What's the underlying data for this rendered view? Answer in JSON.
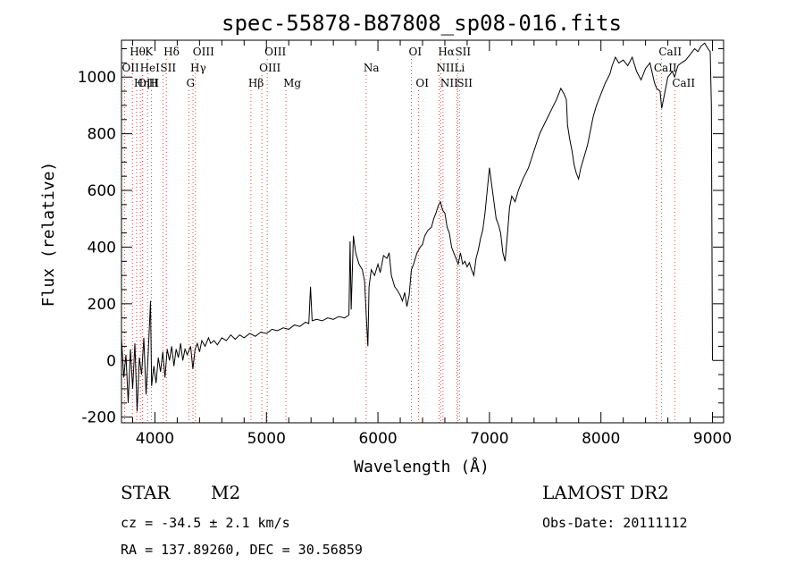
{
  "chart_data": {
    "type": "line",
    "title": "spec-55878-B87808_sp08-016.fits",
    "xlabel": "Wavelength (Å)",
    "ylabel": "Flux (relative)",
    "xlim": [
      3700,
      9100
    ],
    "ylim": [
      -220,
      1130
    ],
    "x_ticks": [
      4000,
      5000,
      6000,
      7000,
      8000,
      9000
    ],
    "y_ticks": [
      -200,
      0,
      200,
      400,
      600,
      800,
      1000
    ],
    "grid": false,
    "series": [
      {
        "points": [
          [
            3700,
            80
          ],
          [
            3720,
            -60
          ],
          [
            3740,
            20
          ],
          [
            3760,
            -150
          ],
          [
            3780,
            40
          ],
          [
            3800,
            -100
          ],
          [
            3820,
            60
          ],
          [
            3840,
            -180
          ],
          [
            3860,
            10
          ],
          [
            3880,
            -50
          ],
          [
            3900,
            80
          ],
          [
            3920,
            -120
          ],
          [
            3940,
            30
          ],
          [
            3960,
            210
          ],
          [
            3970,
            -90
          ],
          [
            3990,
            -20
          ],
          [
            4010,
            -80
          ],
          [
            4030,
            10
          ],
          [
            4050,
            -40
          ],
          [
            4070,
            30
          ],
          [
            4090,
            -60
          ],
          [
            4110,
            40
          ],
          [
            4130,
            0
          ],
          [
            4150,
            50
          ],
          [
            4170,
            -20
          ],
          [
            4190,
            40
          ],
          [
            4210,
            10
          ],
          [
            4230,
            60
          ],
          [
            4250,
            0
          ],
          [
            4270,
            40
          ],
          [
            4290,
            20
          ],
          [
            4320,
            50
          ],
          [
            4340,
            -30
          ],
          [
            4360,
            40
          ],
          [
            4380,
            60
          ],
          [
            4400,
            30
          ],
          [
            4420,
            70
          ],
          [
            4450,
            50
          ],
          [
            4480,
            80
          ],
          [
            4500,
            60
          ],
          [
            4530,
            70
          ],
          [
            4560,
            55
          ],
          [
            4600,
            80
          ],
          [
            4640,
            70
          ],
          [
            4680,
            90
          ],
          [
            4720,
            75
          ],
          [
            4760,
            90
          ],
          [
            4800,
            80
          ],
          [
            4850,
            95
          ],
          [
            4900,
            85
          ],
          [
            4950,
            100
          ],
          [
            5000,
            95
          ],
          [
            5050,
            110
          ],
          [
            5100,
            105
          ],
          [
            5150,
            115
          ],
          [
            5200,
            110
          ],
          [
            5250,
            125
          ],
          [
            5300,
            120
          ],
          [
            5350,
            135
          ],
          [
            5380,
            130
          ],
          [
            5395,
            260
          ],
          [
            5410,
            140
          ],
          [
            5450,
            145
          ],
          [
            5500,
            140
          ],
          [
            5550,
            150
          ],
          [
            5600,
            145
          ],
          [
            5650,
            155
          ],
          [
            5700,
            150
          ],
          [
            5740,
            160
          ],
          [
            5750,
            420
          ],
          [
            5760,
            180
          ],
          [
            5780,
            440
          ],
          [
            5800,
            380
          ],
          [
            5830,
            340
          ],
          [
            5860,
            320
          ],
          [
            5880,
            280
          ],
          [
            5900,
            120
          ],
          [
            5910,
            50
          ],
          [
            5920,
            260
          ],
          [
            5940,
            320
          ],
          [
            5970,
            300
          ],
          [
            6000,
            340
          ],
          [
            6020,
            310
          ],
          [
            6050,
            370
          ],
          [
            6080,
            360
          ],
          [
            6100,
            380
          ],
          [
            6120,
            300
          ],
          [
            6150,
            260
          ],
          [
            6170,
            250
          ],
          [
            6200,
            230
          ],
          [
            6220,
            210
          ],
          [
            6240,
            240
          ],
          [
            6260,
            190
          ],
          [
            6280,
            230
          ],
          [
            6300,
            320
          ],
          [
            6320,
            340
          ],
          [
            6350,
            380
          ],
          [
            6380,
            400
          ],
          [
            6400,
            410
          ],
          [
            6420,
            440
          ],
          [
            6450,
            460
          ],
          [
            6480,
            470
          ],
          [
            6500,
            500
          ],
          [
            6520,
            520
          ],
          [
            6540,
            545
          ],
          [
            6560,
            560
          ],
          [
            6580,
            530
          ],
          [
            6600,
            520
          ],
          [
            6620,
            470
          ],
          [
            6640,
            450
          ],
          [
            6660,
            400
          ],
          [
            6680,
            380
          ],
          [
            6700,
            360
          ],
          [
            6720,
            340
          ],
          [
            6740,
            380
          ],
          [
            6760,
            340
          ],
          [
            6780,
            350
          ],
          [
            6800,
            330
          ],
          [
            6820,
            345
          ],
          [
            6840,
            320
          ],
          [
            6860,
            300
          ],
          [
            6880,
            360
          ],
          [
            6900,
            390
          ],
          [
            6920,
            430
          ],
          [
            6940,
            460
          ],
          [
            6960,
            520
          ],
          [
            6980,
            600
          ],
          [
            7000,
            680
          ],
          [
            7020,
            620
          ],
          [
            7040,
            560
          ],
          [
            7060,
            500
          ],
          [
            7080,
            480
          ],
          [
            7100,
            450
          ],
          [
            7120,
            380
          ],
          [
            7140,
            350
          ],
          [
            7160,
            440
          ],
          [
            7180,
            540
          ],
          [
            7200,
            580
          ],
          [
            7230,
            560
          ],
          [
            7260,
            600
          ],
          [
            7300,
            640
          ],
          [
            7350,
            680
          ],
          [
            7400,
            740
          ],
          [
            7450,
            800
          ],
          [
            7500,
            840
          ],
          [
            7550,
            880
          ],
          [
            7600,
            920
          ],
          [
            7640,
            960
          ],
          [
            7670,
            940
          ],
          [
            7690,
            920
          ],
          [
            7700,
            830
          ],
          [
            7720,
            780
          ],
          [
            7740,
            740
          ],
          [
            7760,
            690
          ],
          [
            7780,
            660
          ],
          [
            7800,
            640
          ],
          [
            7820,
            680
          ],
          [
            7850,
            720
          ],
          [
            7880,
            760
          ],
          [
            7900,
            800
          ],
          [
            7930,
            860
          ],
          [
            7960,
            900
          ],
          [
            8000,
            940
          ],
          [
            8040,
            980
          ],
          [
            8080,
            1010
          ],
          [
            8100,
            1040
          ],
          [
            8130,
            1070
          ],
          [
            8160,
            1050
          ],
          [
            8200,
            1060
          ],
          [
            8240,
            1040
          ],
          [
            8280,
            1070
          ],
          [
            8320,
            1020
          ],
          [
            8360,
            990
          ],
          [
            8400,
            1030
          ],
          [
            8440,
            1050
          ],
          [
            8480,
            980
          ],
          [
            8500,
            960
          ],
          [
            8530,
            950
          ],
          [
            8545,
            890
          ],
          [
            8560,
            920
          ],
          [
            8580,
            960
          ],
          [
            8600,
            1000
          ],
          [
            8640,
            1020
          ],
          [
            8660,
            1000
          ],
          [
            8690,
            1040
          ],
          [
            8720,
            1050
          ],
          [
            8760,
            1060
          ],
          [
            8800,
            1080
          ],
          [
            8840,
            1100
          ],
          [
            8870,
            1090
          ],
          [
            8900,
            1110
          ],
          [
            8930,
            1120
          ],
          [
            8960,
            1100
          ],
          [
            8980,
            1090
          ],
          [
            8990,
            900
          ],
          [
            9000,
            0
          ]
        ]
      }
    ],
    "line_markers": [
      {
        "label": "Hθ",
        "x": 3798,
        "row": 0
      },
      {
        "label": "OII",
        "x": 3727,
        "row": 1
      },
      {
        "label": "OIII",
        "x": 3869,
        "row": 2
      },
      {
        "label": "K",
        "x": 3934,
        "row": 0
      },
      {
        "label": "HeI",
        "x": 3889,
        "row": 1
      },
      {
        "label": "Hη",
        "x": 3835,
        "row": 2
      },
      {
        "label": "SII",
        "x": 4072,
        "row": 1
      },
      {
        "label": "H",
        "x": 3969,
        "row": 2
      },
      {
        "label": "Hδ",
        "x": 4102,
        "row": 0
      },
      {
        "label": "OIII",
        "x": 4363,
        "row": 0
      },
      {
        "label": "Hγ",
        "x": 4341,
        "row": 1
      },
      {
        "label": "G",
        "x": 4305,
        "row": 2
      },
      {
        "label": "Hβ",
        "x": 4861,
        "row": 2
      },
      {
        "label": "OIII",
        "x": 5007,
        "row": 0
      },
      {
        "label": "OIII",
        "x": 4959,
        "row": 1
      },
      {
        "label": "Mg",
        "x": 5175,
        "row": 2
      },
      {
        "label": "Na",
        "x": 5894,
        "row": 1
      },
      {
        "label": "OI",
        "x": 6300,
        "row": 0
      },
      {
        "label": "OI",
        "x": 6363,
        "row": 2
      },
      {
        "label": "Hα",
        "x": 6563,
        "row": 0
      },
      {
        "label": "SII",
        "x": 6716,
        "row": 0
      },
      {
        "label": "NII",
        "x": 6548,
        "row": 1
      },
      {
        "label": "Li",
        "x": 6708,
        "row": 1
      },
      {
        "label": "NII",
        "x": 6583,
        "row": 2
      },
      {
        "label": "SII",
        "x": 6731,
        "row": 2
      },
      {
        "label": "CaII",
        "x": 8542,
        "row": 0
      },
      {
        "label": "CaII",
        "x": 8498,
        "row": 1
      },
      {
        "label": "CaII",
        "x": 8662,
        "row": 2
      }
    ]
  },
  "info": {
    "object_class": "STAR",
    "subclass": "M2",
    "survey": "LAMOST DR2",
    "redshift": "cz = -34.5 ± 2.1 km/s",
    "obs_date": "Obs-Date: 20111112",
    "coords": "RA = 137.89260, DEC =  30.56859"
  },
  "colors": {
    "spectrum": "#000000",
    "marker_line": "#dd4444"
  }
}
